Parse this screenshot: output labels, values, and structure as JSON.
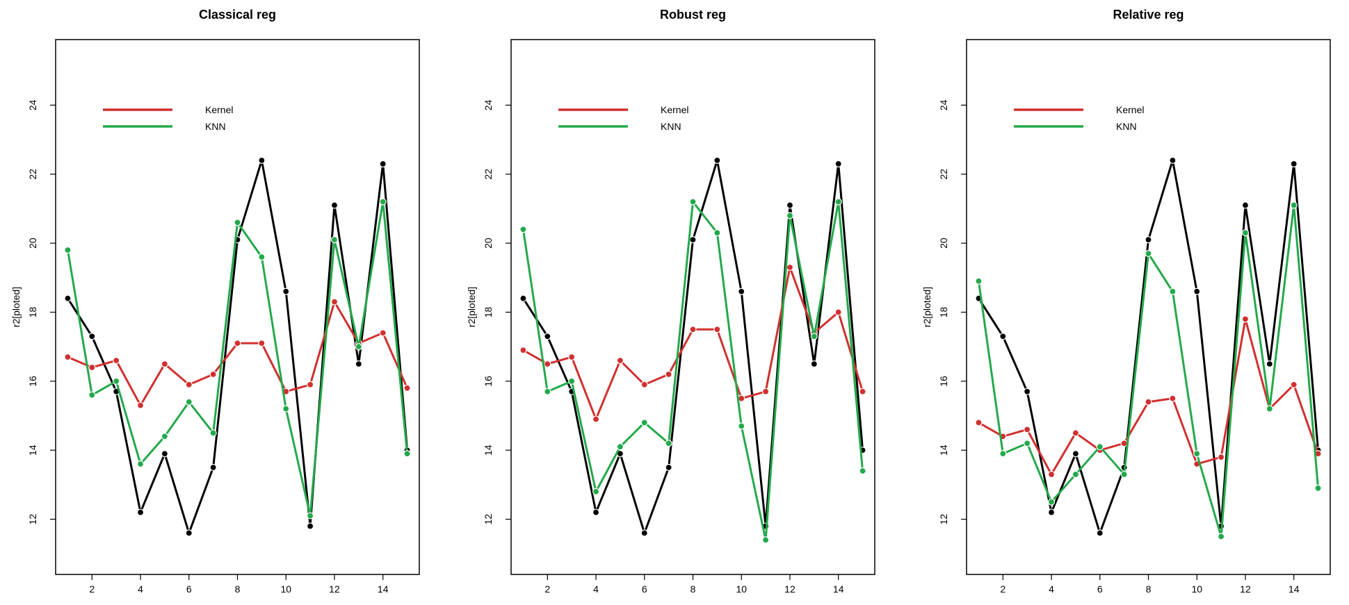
{
  "colors": {
    "black_series": "#000000",
    "kernel": "#d0302f",
    "knn": "#23a94a"
  },
  "chart_data": [
    {
      "type": "line",
      "title": "Classical reg",
      "xlabel": "",
      "ylabel": "r2[ploted]",
      "x": [
        1,
        2,
        3,
        4,
        5,
        6,
        7,
        8,
        9,
        10,
        11,
        12,
        13,
        14,
        15
      ],
      "xticks": [
        2,
        4,
        6,
        8,
        10,
        12,
        14
      ],
      "yticks": [
        12,
        14,
        16,
        18,
        20,
        22,
        24
      ],
      "xlim": [
        0.5,
        15.5
      ],
      "ylim": [
        10.4,
        25.9
      ],
      "legend": {
        "position": "top-left",
        "entries": [
          "Kernel",
          "KNN"
        ]
      },
      "series": [
        {
          "color": "#000000",
          "values": [
            18.4,
            17.3,
            15.7,
            12.2,
            13.9,
            11.6,
            13.5,
            20.1,
            22.4,
            18.6,
            11.8,
            21.1,
            16.5,
            22.3,
            14.0
          ]
        },
        {
          "name": "Kernel",
          "color": "#d0302f",
          "values": [
            16.7,
            16.4,
            16.6,
            15.3,
            16.5,
            15.9,
            16.2,
            17.1,
            17.1,
            15.7,
            15.9,
            18.3,
            17.1,
            17.4,
            15.8
          ]
        },
        {
          "name": "KNN",
          "color": "#23a94a",
          "values": [
            19.8,
            15.6,
            16.0,
            13.6,
            14.4,
            15.4,
            14.5,
            20.6,
            19.6,
            15.2,
            12.1,
            20.1,
            17.0,
            21.2,
            13.9
          ]
        }
      ]
    },
    {
      "type": "line",
      "title": "Robust reg",
      "xlabel": "",
      "ylabel": "r2[ploted]",
      "x": [
        1,
        2,
        3,
        4,
        5,
        6,
        7,
        8,
        9,
        10,
        11,
        12,
        13,
        14,
        15
      ],
      "xticks": [
        2,
        4,
        6,
        8,
        10,
        12,
        14
      ],
      "yticks": [
        12,
        14,
        16,
        18,
        20,
        22,
        24
      ],
      "xlim": [
        0.5,
        15.5
      ],
      "ylim": [
        10.4,
        25.9
      ],
      "legend": {
        "position": "top-left",
        "entries": [
          "Kernel",
          "KNN"
        ]
      },
      "series": [
        {
          "color": "#000000",
          "values": [
            18.4,
            17.3,
            15.7,
            12.2,
            13.9,
            11.6,
            13.5,
            20.1,
            22.4,
            18.6,
            11.8,
            21.1,
            16.5,
            22.3,
            14.0
          ]
        },
        {
          "name": "Kernel",
          "color": "#d0302f",
          "values": [
            16.9,
            16.5,
            16.7,
            14.9,
            16.6,
            15.9,
            16.2,
            17.5,
            17.5,
            15.5,
            15.7,
            19.3,
            17.4,
            18.0,
            15.7
          ]
        },
        {
          "name": "KNN",
          "color": "#23a94a",
          "values": [
            20.4,
            15.7,
            16.0,
            12.8,
            14.1,
            14.8,
            14.2,
            21.2,
            20.3,
            14.7,
            11.4,
            20.8,
            17.3,
            21.2,
            13.4
          ]
        }
      ]
    },
    {
      "type": "line",
      "title": "Relative reg",
      "xlabel": "",
      "ylabel": "r2[ploted]",
      "x": [
        1,
        2,
        3,
        4,
        5,
        6,
        7,
        8,
        9,
        10,
        11,
        12,
        13,
        14,
        15
      ],
      "xticks": [
        2,
        4,
        6,
        8,
        10,
        12,
        14
      ],
      "yticks": [
        12,
        14,
        16,
        18,
        20,
        22,
        24
      ],
      "xlim": [
        0.5,
        15.5
      ],
      "ylim": [
        10.4,
        25.9
      ],
      "legend": {
        "position": "top-left",
        "entries": [
          "Kernel",
          "KNN"
        ]
      },
      "series": [
        {
          "color": "#000000",
          "values": [
            18.4,
            17.3,
            15.7,
            12.2,
            13.9,
            11.6,
            13.5,
            20.1,
            22.4,
            18.6,
            11.8,
            21.1,
            16.5,
            22.3,
            14.0
          ]
        },
        {
          "name": "Kernel",
          "color": "#d0302f",
          "values": [
            14.8,
            14.4,
            14.6,
            13.3,
            14.5,
            14.0,
            14.2,
            15.4,
            15.5,
            13.6,
            13.8,
            17.8,
            15.2,
            15.9,
            13.9
          ]
        },
        {
          "name": "KNN",
          "color": "#23a94a",
          "values": [
            18.9,
            13.9,
            14.2,
            12.5,
            13.3,
            14.1,
            13.3,
            19.7,
            18.6,
            13.9,
            11.5,
            20.3,
            15.2,
            21.1,
            12.9
          ]
        }
      ]
    }
  ]
}
